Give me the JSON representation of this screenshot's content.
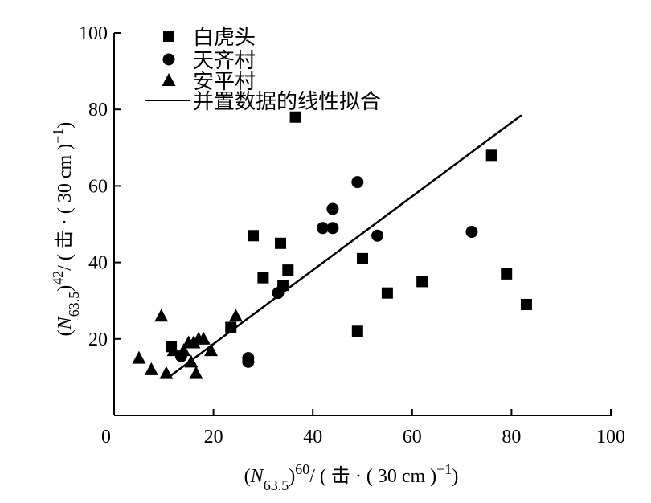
{
  "chart_data": {
    "type": "scatter",
    "xlabel": {
      "open": "(",
      "var": "N",
      "sub": "63.5",
      "close": ")",
      "sup": "60",
      "unit": "/ ( 击 · ( 30 cm )",
      "unit_sup": "−1",
      "unit_close": ")"
    },
    "ylabel": {
      "open": "(",
      "var": "N",
      "sub": "63.5",
      "close": ")",
      "sup": "42",
      "unit": "/ ( 击 · ( 30 cm )",
      "unit_sup": "−1",
      "unit_close": ")"
    },
    "xlim": [
      0,
      100
    ],
    "ylim": [
      0,
      100
    ],
    "xticks": [
      0,
      20,
      40,
      60,
      80,
      100
    ],
    "yticks": [
      20,
      40,
      60,
      80,
      100
    ],
    "grid": false,
    "legend_position": "top-left",
    "series": [
      {
        "name": "白虎头",
        "marker": "square",
        "points": [
          [
            11.5,
            18
          ],
          [
            23.5,
            23
          ],
          [
            28,
            47
          ],
          [
            30,
            36
          ],
          [
            33.5,
            45
          ],
          [
            34,
            34
          ],
          [
            35,
            38
          ],
          [
            36.5,
            78
          ],
          [
            49,
            22
          ],
          [
            50,
            41
          ],
          [
            55,
            32
          ],
          [
            62,
            35
          ],
          [
            76,
            68
          ],
          [
            79,
            37
          ],
          [
            83,
            29
          ]
        ]
      },
      {
        "name": "天齐村",
        "marker": "circle",
        "points": [
          [
            13.5,
            15.5
          ],
          [
            27,
            15
          ],
          [
            27,
            14
          ],
          [
            33,
            32
          ],
          [
            42,
            49
          ],
          [
            44,
            54
          ],
          [
            44,
            49
          ],
          [
            49,
            61
          ],
          [
            53,
            47
          ],
          [
            72,
            48
          ]
        ]
      },
      {
        "name": "安平村",
        "marker": "triangle",
        "points": [
          [
            5,
            15
          ],
          [
            7.5,
            12
          ],
          [
            9.5,
            26
          ],
          [
            10.5,
            11
          ],
          [
            12,
            17
          ],
          [
            14,
            17
          ],
          [
            15,
            19
          ],
          [
            15.5,
            14
          ],
          [
            16,
            19
          ],
          [
            16.5,
            11
          ],
          [
            17,
            20
          ],
          [
            18,
            20
          ],
          [
            19.5,
            17
          ],
          [
            24.5,
            26
          ]
        ]
      }
    ],
    "fit_line": {
      "name": "并置数据的线性拟合",
      "points": [
        [
          11,
          10
        ],
        [
          82,
          78.5
        ]
      ]
    }
  }
}
